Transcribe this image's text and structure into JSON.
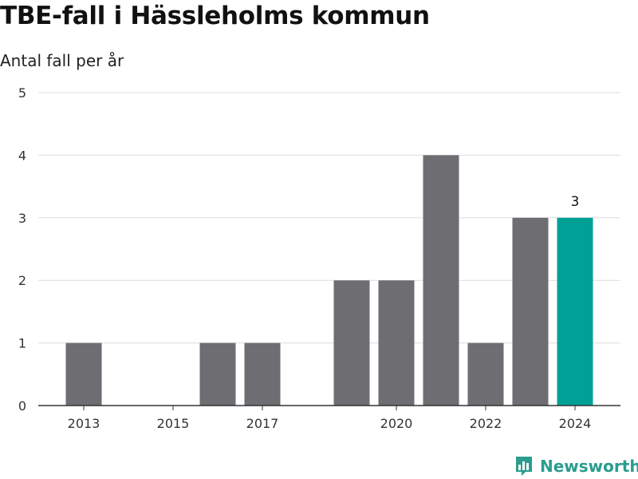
{
  "title": "TBE-fall i Hässleholms kommun",
  "subtitle": "Antal fall per år",
  "brand": {
    "name": "Newsworthy",
    "icon": "newsworthy-logo-icon"
  },
  "colors": {
    "bar": "#6e6d71",
    "highlight": "#00a096",
    "grid": "#dddddd",
    "brand": "#2a9d8f"
  },
  "chart_data": {
    "type": "bar",
    "title": "TBE-fall i Hässleholms kommun",
    "subtitle": "Antal fall per år",
    "xlabel": "",
    "ylabel": "",
    "categories": [
      "2013",
      "2014",
      "2015",
      "2016",
      "2017",
      "2018",
      "2019",
      "2020",
      "2021",
      "2022",
      "2023",
      "2024"
    ],
    "values": [
      1,
      0,
      0,
      1,
      1,
      0,
      2,
      2,
      4,
      1,
      3,
      3
    ],
    "x_tick_labels": [
      "2013",
      "2015",
      "2017",
      "2020",
      "2022",
      "2024"
    ],
    "y_ticks": [
      0,
      1,
      2,
      3,
      4,
      5
    ],
    "ylim": [
      0,
      5
    ],
    "highlight_category": "2024",
    "data_labels": [
      {
        "category": "2024",
        "text": "3"
      }
    ],
    "grid": true,
    "legend": "none"
  }
}
